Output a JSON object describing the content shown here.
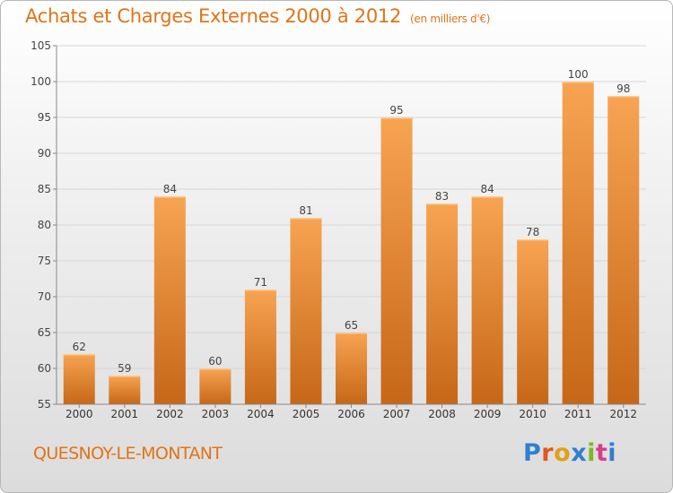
{
  "header": {
    "title": "Achats et Charges Externes 2000 à 2012",
    "unit": "(en milliers d'€)"
  },
  "footer": {
    "town": "QUESNOY-LE-MONTANT",
    "brand": "Proxiti",
    "brand_colors": [
      "#2f7fd0",
      "#e05a1a",
      "#e0a018",
      "#2f7fd0",
      "#7fb728",
      "#d63f8c",
      "#2f7fd0"
    ]
  },
  "colors": {
    "bar_top": "#f7a452",
    "bar_bottom": "#c66717",
    "accent": "#e07417"
  },
  "chart_data": {
    "type": "bar",
    "title": "Achats et Charges Externes 2000 à 2012",
    "subtitle": "(en milliers d'€)",
    "categories": [
      "2000",
      "2001",
      "2002",
      "2003",
      "2004",
      "2005",
      "2006",
      "2007",
      "2008",
      "2009",
      "2010",
      "2011",
      "2012"
    ],
    "values": [
      62,
      59,
      84,
      60,
      71,
      81,
      65,
      95,
      83,
      84,
      78,
      100,
      98
    ],
    "ylim": [
      55,
      105
    ],
    "yticks": [
      55,
      60,
      65,
      70,
      75,
      80,
      85,
      90,
      95,
      100,
      105
    ],
    "grid": true,
    "data_labels": true
  }
}
